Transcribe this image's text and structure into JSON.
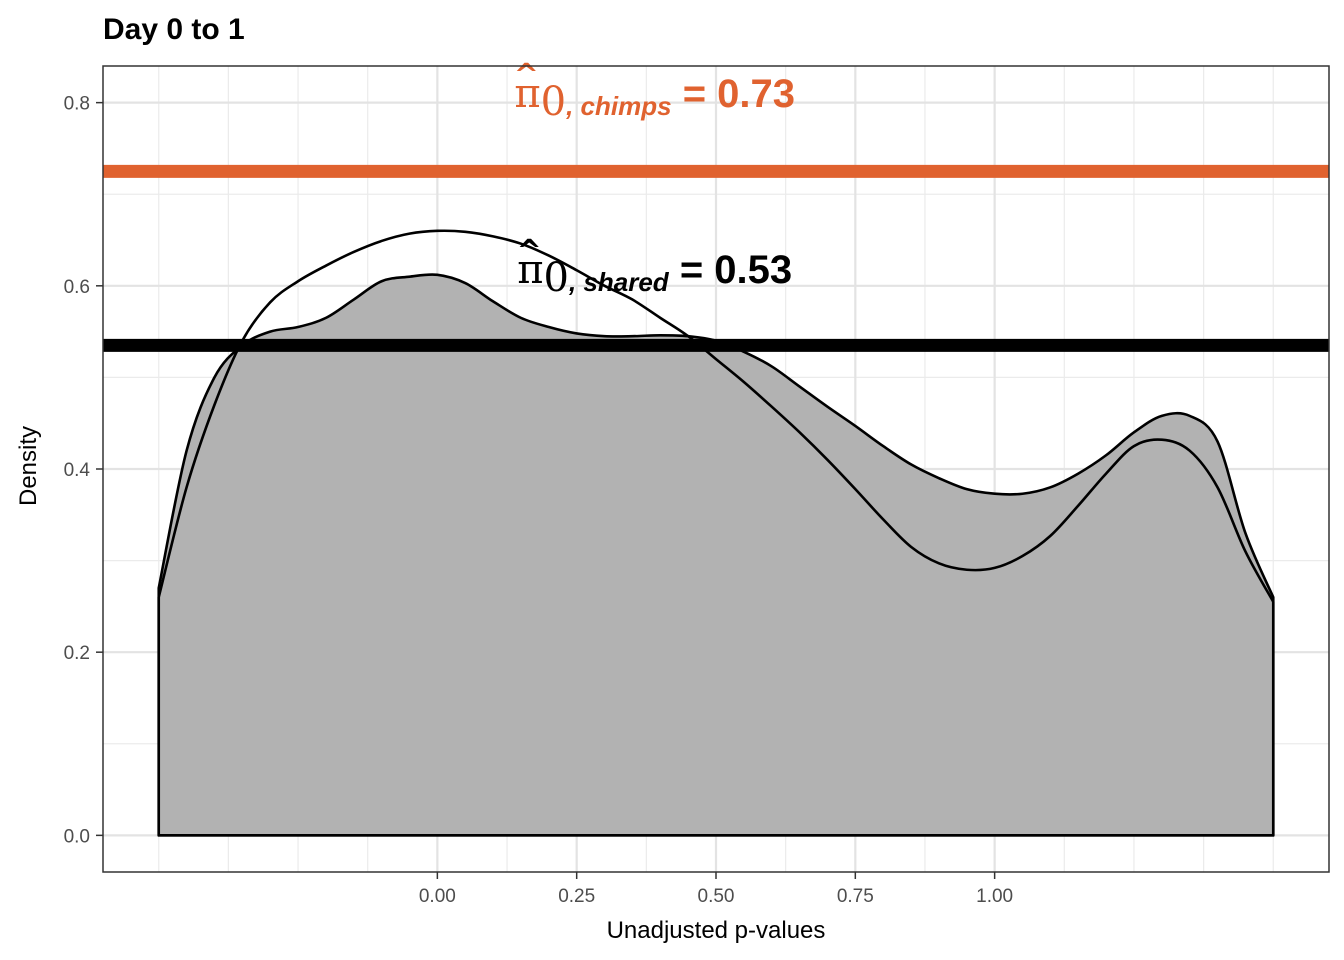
{
  "chart_data": {
    "type": "area",
    "title": "Day 0 to 1",
    "xlabel": "Unadjusted p-values",
    "ylabel": "Density",
    "xlim": [
      -0.6,
      1.6
    ],
    "ylim": [
      -0.04,
      0.84
    ],
    "x_ticks": [
      0.0,
      0.25,
      0.5,
      0.75,
      1.0
    ],
    "x_tick_labels": [
      "0.00",
      "0.25",
      "0.50",
      "0.75",
      "1.00"
    ],
    "y_ticks": [
      0.0,
      0.2,
      0.4,
      0.6,
      0.8
    ],
    "y_tick_labels": [
      "0.0",
      "0.2",
      "0.4",
      "0.6",
      "0.8"
    ],
    "grid": true,
    "series": [
      {
        "fill": "#b2b2b2",
        "x": [
          -0.5,
          -0.45,
          -0.4,
          -0.35,
          -0.3,
          -0.25,
          -0.2,
          -0.15,
          -0.1,
          -0.05,
          0.0,
          0.05,
          0.1,
          0.15,
          0.2,
          0.25,
          0.3,
          0.35,
          0.4,
          0.45,
          0.5,
          0.55,
          0.6,
          0.65,
          0.7,
          0.75,
          0.8,
          0.85,
          0.9,
          0.95,
          1.0,
          1.05,
          1.1,
          1.15,
          1.2,
          1.25,
          1.3,
          1.35,
          1.4,
          1.45,
          1.5
        ],
        "y": [
          0.27,
          0.42,
          0.5,
          0.535,
          0.55,
          0.555,
          0.565,
          0.585,
          0.605,
          0.61,
          0.612,
          0.603,
          0.583,
          0.565,
          0.555,
          0.548,
          0.545,
          0.545,
          0.546,
          0.545,
          0.54,
          0.528,
          0.512,
          0.49,
          0.468,
          0.447,
          0.425,
          0.405,
          0.39,
          0.378,
          0.373,
          0.373,
          0.38,
          0.395,
          0.415,
          0.44,
          0.458,
          0.458,
          0.43,
          0.33,
          0.26
        ]
      },
      {
        "fill": "none",
        "x": [
          -0.5,
          -0.45,
          -0.4,
          -0.35,
          -0.3,
          -0.25,
          -0.2,
          -0.15,
          -0.1,
          -0.05,
          0.0,
          0.05,
          0.1,
          0.15,
          0.2,
          0.25,
          0.3,
          0.35,
          0.4,
          0.45,
          0.5,
          0.55,
          0.6,
          0.65,
          0.7,
          0.75,
          0.8,
          0.85,
          0.9,
          0.95,
          1.0,
          1.05,
          1.1,
          1.15,
          1.2,
          1.25,
          1.3,
          1.35,
          1.4,
          1.45,
          1.5
        ],
        "y": [
          0.26,
          0.38,
          0.47,
          0.54,
          0.582,
          0.605,
          0.622,
          0.637,
          0.649,
          0.657,
          0.66,
          0.659,
          0.654,
          0.646,
          0.633,
          0.617,
          0.6,
          0.585,
          0.565,
          0.545,
          0.52,
          0.495,
          0.468,
          0.44,
          0.41,
          0.378,
          0.345,
          0.315,
          0.297,
          0.29,
          0.292,
          0.305,
          0.327,
          0.36,
          0.395,
          0.425,
          0.432,
          0.42,
          0.38,
          0.31,
          0.255
        ]
      }
    ],
    "hlines": [
      {
        "y": 0.725,
        "color": "#E0622F"
      },
      {
        "y": 0.535,
        "color": "#000000"
      }
    ],
    "annotations": [
      {
        "symbol": "π",
        "hat": "^",
        "index": "0",
        "subscript": ", chimps",
        "equals": " = ",
        "value": "0.73",
        "color": "#E0622F",
        "x": 0.39,
        "y": 0.795
      },
      {
        "symbol": "π",
        "hat": "^",
        "index": "0",
        "subscript": ", shared",
        "equals": " = ",
        "value": "0.53",
        "color": "#000000",
        "x": 0.39,
        "y": 0.603
      }
    ]
  }
}
